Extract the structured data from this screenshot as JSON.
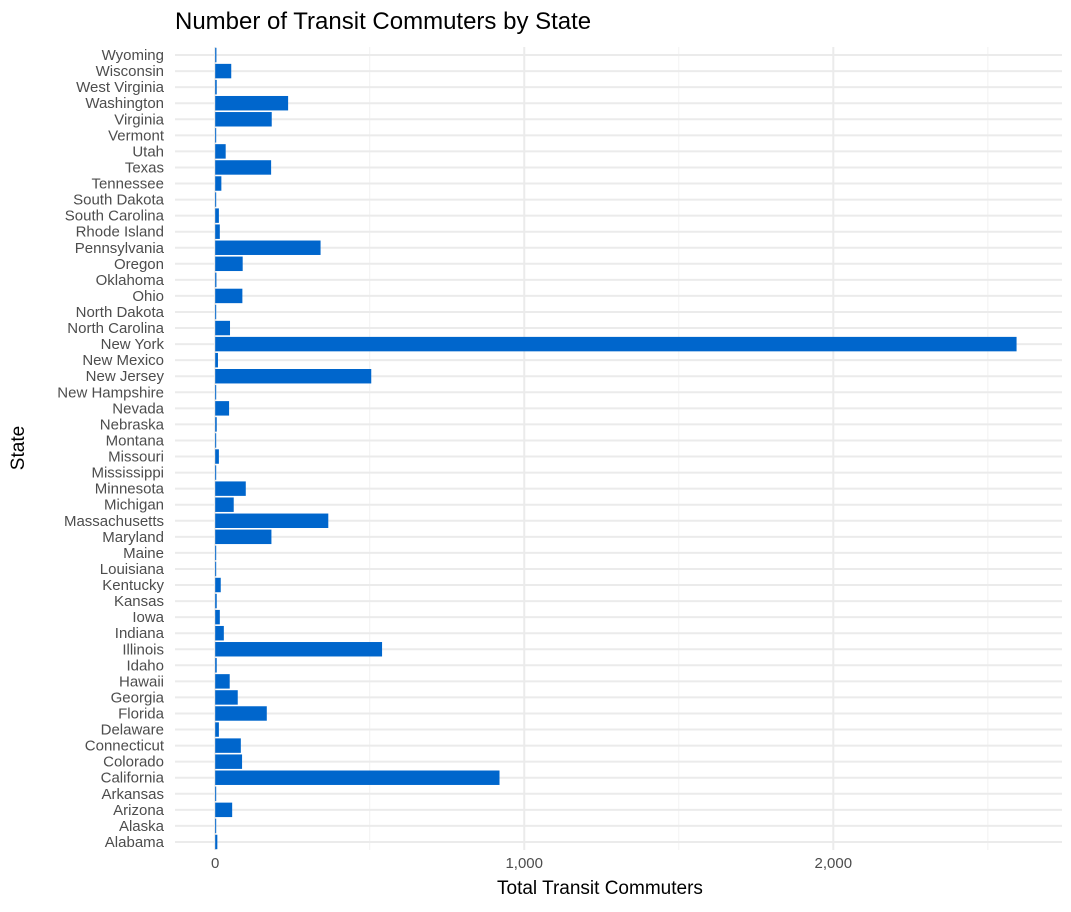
{
  "chart_data": {
    "type": "bar",
    "orientation": "horizontal",
    "title": "Number of Transit Commuters by State",
    "xlabel": "Total Transit Commuters",
    "ylabel": "State",
    "xlim": [
      -130,
      2740
    ],
    "xticks": [
      0,
      1000,
      2000
    ],
    "xtick_labels": [
      "0",
      "1,000",
      "2,000"
    ],
    "grid": true,
    "bar_color": "#0066CC",
    "categories": [
      "Alabama",
      "Alaska",
      "Arizona",
      "Arkansas",
      "California",
      "Colorado",
      "Connecticut",
      "Delaware",
      "Florida",
      "Georgia",
      "Hawaii",
      "Idaho",
      "Illinois",
      "Indiana",
      "Iowa",
      "Kansas",
      "Kentucky",
      "Louisiana",
      "Maine",
      "Maryland",
      "Massachusetts",
      "Michigan",
      "Minnesota",
      "Mississippi",
      "Missouri",
      "Montana",
      "Nebraska",
      "Nevada",
      "New Hampshire",
      "New Jersey",
      "New Mexico",
      "New York",
      "North Carolina",
      "North Dakota",
      "Ohio",
      "Oklahoma",
      "Oregon",
      "Pennsylvania",
      "Rhode Island",
      "South Carolina",
      "South Dakota",
      "Tennessee",
      "Texas",
      "Utah",
      "Vermont",
      "Virginia",
      "Washington",
      "West Virginia",
      "Wisconsin",
      "Wyoming"
    ],
    "values": [
      7,
      1,
      55,
      2,
      920,
      87,
      83,
      12,
      167,
      73,
      47,
      5,
      540,
      28,
      15,
      5,
      18,
      1,
      3,
      182,
      366,
      60,
      99,
      2,
      12,
      2,
      5,
      45,
      3,
      505,
      9,
      2593,
      48,
      2,
      88,
      4,
      89,
      341,
      15,
      12,
      1,
      20,
      181,
      34,
      2,
      183,
      236,
      5,
      52,
      4
    ]
  }
}
